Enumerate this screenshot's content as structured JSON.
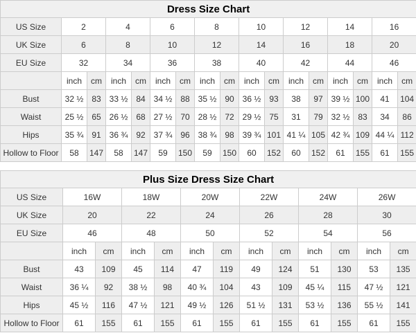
{
  "colors": {
    "shaded_cell_bg": "#eeeeee",
    "title_bar_bg": "#f0f0f0",
    "grid_border": "#cccccc",
    "text": "#333333",
    "title_text": "#000000"
  },
  "tables": [
    {
      "title": "Dress Size Chart",
      "unit_headers": [
        "inch",
        "cm"
      ],
      "size_rows": [
        {
          "label": "US Size",
          "shaded": false,
          "values": [
            "2",
            "4",
            "6",
            "8",
            "10",
            "12",
            "14",
            "16"
          ]
        },
        {
          "label": "UK Size",
          "shaded": true,
          "values": [
            "6",
            "8",
            "10",
            "12",
            "14",
            "16",
            "18",
            "20"
          ]
        },
        {
          "label": "EU Size",
          "shaded": false,
          "values": [
            "32",
            "34",
            "36",
            "38",
            "40",
            "42",
            "44",
            "46"
          ]
        }
      ],
      "measure_rows": [
        {
          "label": "Bust",
          "values": [
            [
              "32 ½",
              "83"
            ],
            [
              "33 ½",
              "84"
            ],
            [
              "34 ½",
              "88"
            ],
            [
              "35 ½",
              "90"
            ],
            [
              "36 ½",
              "93"
            ],
            [
              "38",
              "97"
            ],
            [
              "39 ½",
              "100"
            ],
            [
              "41",
              "104"
            ]
          ]
        },
        {
          "label": "Waist",
          "values": [
            [
              "25 ½",
              "65"
            ],
            [
              "26 ½",
              "68"
            ],
            [
              "27 ½",
              "70"
            ],
            [
              "28 ½",
              "72"
            ],
            [
              "29 ½",
              "75"
            ],
            [
              "31",
              "79"
            ],
            [
              "32 ½",
              "83"
            ],
            [
              "34",
              "86"
            ]
          ]
        },
        {
          "label": "Hips",
          "values": [
            [
              "35 ¾",
              "91"
            ],
            [
              "36 ¾",
              "92"
            ],
            [
              "37 ¾",
              "96"
            ],
            [
              "38 ¾",
              "98"
            ],
            [
              "39 ¾",
              "101"
            ],
            [
              "41 ¼",
              "105"
            ],
            [
              "42 ¾",
              "109"
            ],
            [
              "44 ¼",
              "112"
            ]
          ]
        },
        {
          "label": "Hollow to Floor",
          "values": [
            [
              "58",
              "147"
            ],
            [
              "58",
              "147"
            ],
            [
              "59",
              "150"
            ],
            [
              "59",
              "150"
            ],
            [
              "60",
              "152"
            ],
            [
              "60",
              "152"
            ],
            [
              "61",
              "155"
            ],
            [
              "61",
              "155"
            ]
          ]
        }
      ]
    },
    {
      "title": "Plus Size Dress Size Chart",
      "unit_headers": [
        "inch",
        "cm"
      ],
      "size_rows": [
        {
          "label": "US Size",
          "shaded": false,
          "values": [
            "16W",
            "18W",
            "20W",
            "22W",
            "24W",
            "26W"
          ]
        },
        {
          "label": "UK Size",
          "shaded": true,
          "values": [
            "20",
            "22",
            "24",
            "26",
            "28",
            "30"
          ]
        },
        {
          "label": "EU Size",
          "shaded": false,
          "values": [
            "46",
            "48",
            "50",
            "52",
            "54",
            "56"
          ]
        }
      ],
      "measure_rows": [
        {
          "label": "Bust",
          "values": [
            [
              "43",
              "109"
            ],
            [
              "45",
              "114"
            ],
            [
              "47",
              "119"
            ],
            [
              "49",
              "124"
            ],
            [
              "51",
              "130"
            ],
            [
              "53",
              "135"
            ]
          ]
        },
        {
          "label": "Waist",
          "values": [
            [
              "36 ¼",
              "92"
            ],
            [
              "38 ½",
              "98"
            ],
            [
              "40 ¾",
              "104"
            ],
            [
              "43",
              "109"
            ],
            [
              "45 ¼",
              "115"
            ],
            [
              "47 ½",
              "121"
            ]
          ]
        },
        {
          "label": "Hips",
          "values": [
            [
              "45 ½",
              "116"
            ],
            [
              "47 ½",
              "121"
            ],
            [
              "49 ½",
              "126"
            ],
            [
              "51 ½",
              "131"
            ],
            [
              "53 ½",
              "136"
            ],
            [
              "55 ½",
              "141"
            ]
          ]
        },
        {
          "label": "Hollow to Floor",
          "values": [
            [
              "61",
              "155"
            ],
            [
              "61",
              "155"
            ],
            [
              "61",
              "155"
            ],
            [
              "61",
              "155"
            ],
            [
              "61",
              "155"
            ],
            [
              "61",
              "155"
            ]
          ]
        }
      ]
    }
  ]
}
